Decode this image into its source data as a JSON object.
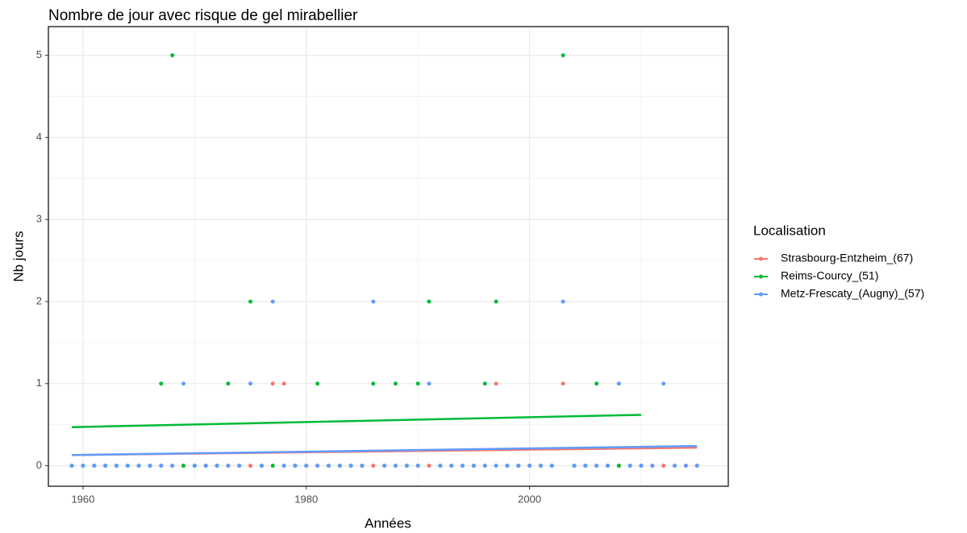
{
  "chart_data": {
    "type": "scatter",
    "title": "Nombre de jour avec risque de gel  mirabellier",
    "x_label": "Années",
    "y_label": "Nb jours",
    "legend_title": "Localisation",
    "x": [
      1959,
      1960,
      1961,
      1962,
      1963,
      1964,
      1965,
      1966,
      1967,
      1968,
      1969,
      1970,
      1971,
      1972,
      1973,
      1974,
      1975,
      1976,
      1977,
      1978,
      1979,
      1980,
      1981,
      1982,
      1983,
      1984,
      1985,
      1986,
      1987,
      1988,
      1989,
      1990,
      1991,
      1992,
      1993,
      1994,
      1995,
      1996,
      1997,
      1998,
      1999,
      2000,
      2001,
      2002,
      2003,
      2004,
      2005,
      2006,
      2007,
      2008,
      2009,
      2010,
      2011,
      2012,
      2013,
      2014,
      2015
    ],
    "series": [
      {
        "name": "Strasbourg-Entzheim_(67)",
        "color": "#F8766D",
        "values": [
          0,
          0,
          0,
          0,
          0,
          0,
          0,
          0,
          0,
          0,
          0,
          0,
          0,
          0,
          0,
          0,
          0,
          0,
          1,
          1,
          0,
          0,
          0,
          0,
          0,
          0,
          0,
          0,
          0,
          0,
          0,
          0,
          0,
          0,
          0,
          0,
          0,
          0,
          1,
          0,
          0,
          0,
          0,
          0,
          1,
          0,
          0,
          0,
          0,
          0,
          0,
          0,
          0,
          0,
          0,
          0,
          0
        ],
        "trend": [
          0.13,
          0.22
        ]
      },
      {
        "name": "Reims-Courcy_(51)",
        "color": "#00BA38",
        "values": [
          0,
          0,
          0,
          0,
          0,
          0,
          0,
          0,
          1,
          5,
          0,
          0,
          0,
          0,
          1,
          0,
          2,
          0,
          0,
          0,
          0,
          0,
          1,
          0,
          0,
          0,
          0,
          1,
          0,
          1,
          0,
          1,
          2,
          0,
          0,
          0,
          0,
          1,
          2,
          0,
          0,
          0,
          0,
          0,
          5,
          0,
          0,
          1,
          0,
          0,
          0,
          0,
          null,
          null,
          null,
          null,
          null
        ],
        "trend": [
          0.47,
          0.62
        ]
      },
      {
        "name": "Metz-Frescaty_(Augny)_(57)",
        "color": "#619CFF",
        "values": [
          0,
          0,
          0,
          0,
          0,
          0,
          0,
          0,
          0,
          0,
          1,
          0,
          0,
          0,
          0,
          0,
          1,
          0,
          2,
          0,
          0,
          0,
          0,
          0,
          0,
          0,
          0,
          2,
          0,
          0,
          0,
          0,
          1,
          0,
          0,
          0,
          0,
          0,
          0,
          0,
          0,
          0,
          0,
          0,
          2,
          0,
          0,
          0,
          0,
          1,
          0,
          0,
          0,
          1,
          0,
          0,
          0
        ],
        "trend": [
          0.13,
          0.24
        ]
      }
    ],
    "xlim": [
      1956.9,
      2017.8
    ],
    "ylim": [
      -0.25,
      5.35
    ],
    "xticks": [
      1960,
      1980,
      2000
    ],
    "yticks": [
      0,
      1,
      2,
      3,
      4,
      5
    ],
    "grid": true,
    "legend": "right"
  }
}
